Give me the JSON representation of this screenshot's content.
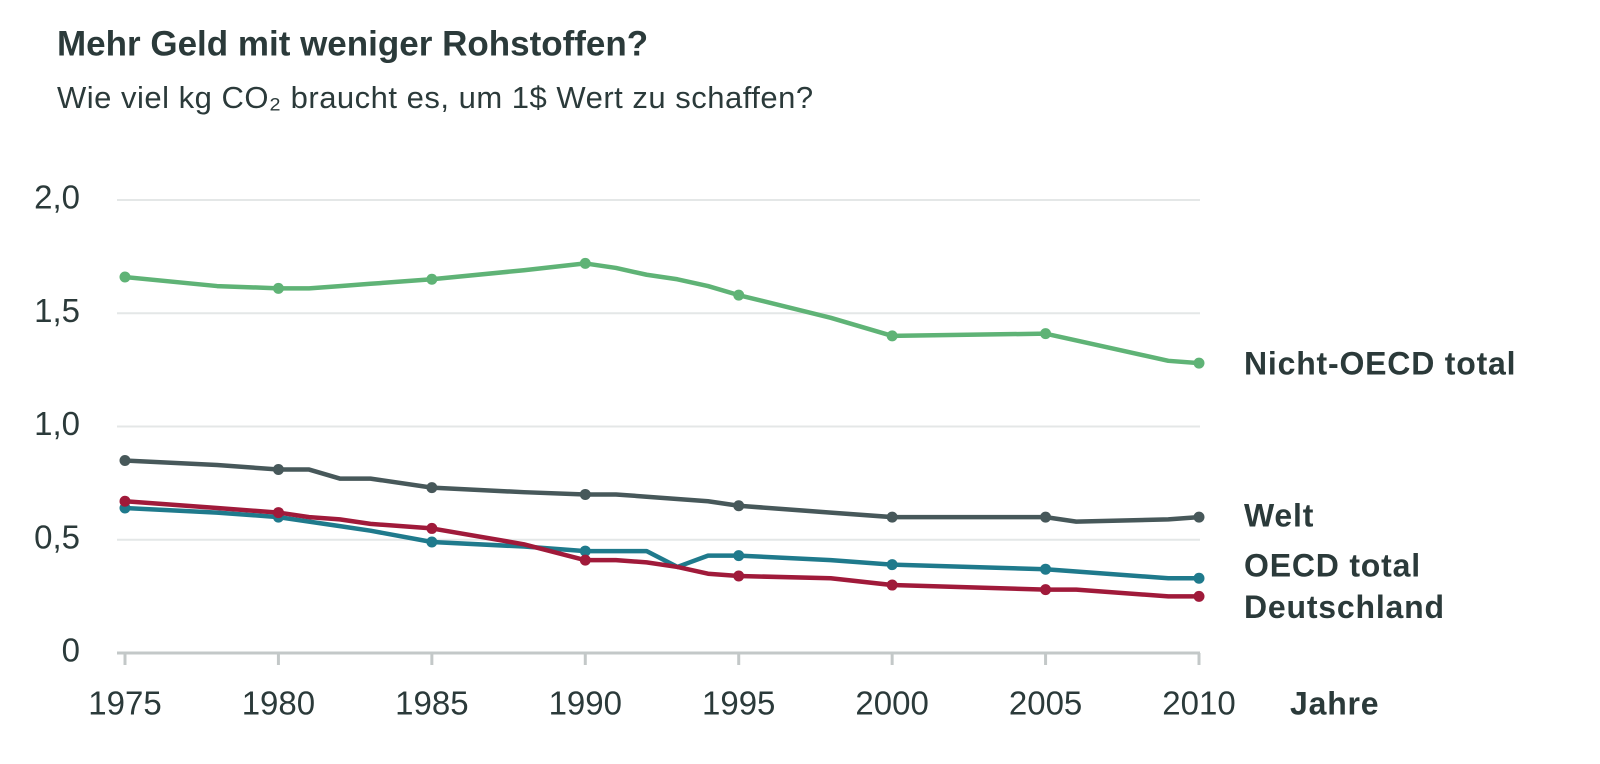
{
  "chart_data": {
    "type": "line",
    "title": "Mehr Geld mit weniger Rohstoffen?",
    "subtitle": "Wie viel kg CO₂ braucht es, um 1$ Wert zu schaffen?",
    "x_label": "Jahre",
    "x": [
      1975,
      1978,
      1980,
      1981,
      1982,
      1983,
      1985,
      1988,
      1990,
      1991,
      1992,
      1993,
      1994,
      1995,
      1998,
      2000,
      2005,
      2006,
      2009,
      2010
    ],
    "xlim": [
      1975,
      2010
    ],
    "xticks": [
      1975,
      1980,
      1985,
      1990,
      1995,
      2000,
      2005,
      2010
    ],
    "ylim": [
      0,
      2
    ],
    "yticks": [
      0,
      {
        "value": 0.5,
        "label": "0,5"
      },
      {
        "value": 1,
        "label": "1,0"
      },
      {
        "value": 1.5,
        "label": "1,5"
      },
      {
        "value": 2,
        "label": "2,0"
      }
    ],
    "grid": true,
    "series": [
      {
        "name": "Nicht-OECD total",
        "color": "#5fb376",
        "values": [
          1.66,
          1.62,
          1.61,
          1.61,
          1.62,
          1.63,
          1.65,
          1.69,
          1.72,
          1.7,
          1.67,
          1.65,
          1.62,
          1.58,
          1.48,
          1.4,
          1.41,
          1.38,
          1.29,
          1.28
        ]
      },
      {
        "name": "Welt",
        "color": "#47585a",
        "values": [
          0.85,
          0.83,
          0.81,
          0.81,
          0.77,
          0.77,
          0.73,
          0.71,
          0.7,
          0.7,
          0.69,
          0.68,
          0.67,
          0.65,
          0.62,
          0.6,
          0.6,
          0.58,
          0.59,
          0.6
        ]
      },
      {
        "name": "OECD total",
        "color": "#1f7a8c",
        "values": [
          0.64,
          0.62,
          0.6,
          0.58,
          0.56,
          0.54,
          0.49,
          0.47,
          0.45,
          0.45,
          0.45,
          0.38,
          0.43,
          0.43,
          0.41,
          0.39,
          0.37,
          0.36,
          0.33,
          0.33
        ]
      },
      {
        "name": "Deutschland",
        "color": "#a01a3a",
        "values": [
          0.67,
          0.64,
          0.62,
          0.6,
          0.59,
          0.57,
          0.55,
          0.48,
          0.41,
          0.41,
          0.4,
          0.38,
          0.35,
          0.34,
          0.33,
          0.3,
          0.28,
          0.28,
          0.25,
          0.25
        ]
      }
    ]
  }
}
